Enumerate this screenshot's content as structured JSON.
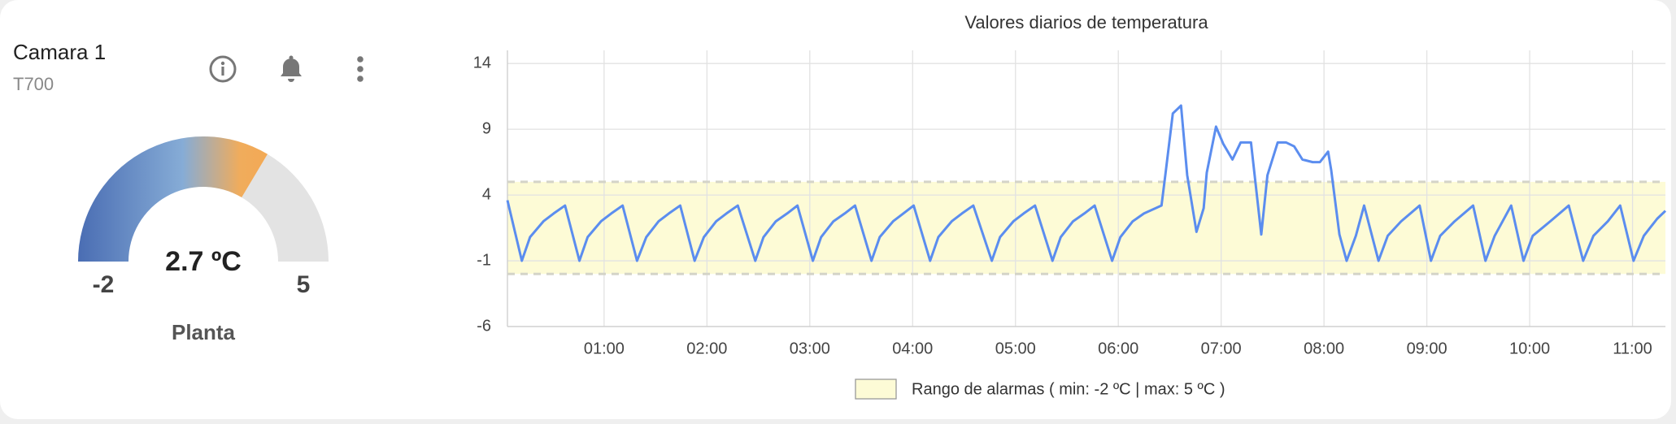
{
  "card": {
    "title": "Camara 1",
    "subtitle": "T700"
  },
  "gauge": {
    "min": -2,
    "max": 5,
    "value": 2.7,
    "value_label": "2.7 ºC",
    "label": "Planta"
  },
  "chart_data": {
    "type": "line",
    "title": "Valores diarios de temperatura",
    "x": [
      0.06,
      0.2,
      0.28,
      0.41,
      0.51,
      0.62,
      0.76,
      0.84,
      0.97,
      1.07,
      1.18,
      1.32,
      1.41,
      1.53,
      1.63,
      1.74,
      1.88,
      1.97,
      2.09,
      2.19,
      2.3,
      2.47,
      2.55,
      2.67,
      2.78,
      2.88,
      3.03,
      3.11,
      3.23,
      3.34,
      3.44,
      3.6,
      3.68,
      3.81,
      3.91,
      4.01,
      4.17,
      4.25,
      4.38,
      4.48,
      4.59,
      4.77,
      4.85,
      4.98,
      5.08,
      5.19,
      5.36,
      5.44,
      5.56,
      5.67,
      5.77,
      5.94,
      6.02,
      6.14,
      6.25,
      6.42,
      6.46,
      6.53,
      6.61,
      6.67,
      6.76,
      6.83,
      6.86,
      6.95,
      7.02,
      7.11,
      7.19,
      7.29,
      7.39,
      7.45,
      7.55,
      7.63,
      7.71,
      7.79,
      7.89,
      7.96,
      8.04,
      8.07,
      8.15,
      8.22,
      8.31,
      8.39,
      8.53,
      8.62,
      8.75,
      8.93,
      9.04,
      9.13,
      9.27,
      9.45,
      9.57,
      9.66,
      9.82,
      9.94,
      10.03,
      10.2,
      10.38,
      10.52,
      10.62,
      10.76,
      10.88,
      11.01,
      11.11,
      11.24,
      11.32
    ],
    "values": [
      3.6,
      -1.0,
      0.8,
      2.0,
      2.6,
      3.2,
      -1.0,
      0.8,
      2.0,
      2.6,
      3.2,
      -1.0,
      0.8,
      2.0,
      2.6,
      3.2,
      -1.0,
      0.8,
      2.0,
      2.6,
      3.2,
      -1.0,
      0.8,
      2.0,
      2.6,
      3.2,
      -1.0,
      0.8,
      2.0,
      2.6,
      3.2,
      -1.0,
      0.8,
      2.0,
      2.6,
      3.2,
      -1.0,
      0.8,
      2.0,
      2.6,
      3.2,
      -1.0,
      0.8,
      2.0,
      2.6,
      3.2,
      -1.0,
      0.8,
      2.0,
      2.6,
      3.2,
      -1.0,
      0.8,
      2.0,
      2.6,
      3.2,
      5.7,
      10.2,
      10.8,
      5.5,
      1.2,
      3.0,
      5.7,
      9.2,
      7.9,
      6.7,
      8.0,
      8.0,
      1.0,
      5.5,
      8.0,
      8.0,
      7.7,
      6.7,
      6.5,
      6.5,
      7.3,
      5.9,
      1.0,
      -1.0,
      0.9,
      3.2,
      -1.0,
      0.9,
      2.0,
      3.2,
      -1.0,
      0.9,
      2.0,
      3.2,
      -1.0,
      0.9,
      3.2,
      -1.0,
      0.9,
      2.0,
      3.2,
      -1.0,
      0.9,
      2.0,
      3.2,
      -1.0,
      0.9,
      2.2,
      2.8
    ],
    "color": "#5b8def",
    "xlim": [
      0.06,
      11.32
    ],
    "xticks": [
      {
        "value": 1,
        "label": "01:00"
      },
      {
        "value": 2,
        "label": "02:00"
      },
      {
        "value": 3,
        "label": "03:00"
      },
      {
        "value": 4,
        "label": "04:00"
      },
      {
        "value": 5,
        "label": "05:00"
      },
      {
        "value": 6,
        "label": "06:00"
      },
      {
        "value": 7,
        "label": "07:00"
      },
      {
        "value": 8,
        "label": "08:00"
      },
      {
        "value": 9,
        "label": "09:00"
      },
      {
        "value": 10,
        "label": "10:00"
      },
      {
        "value": 11,
        "label": "11:00"
      }
    ],
    "ylim": [
      -6,
      15
    ],
    "yticks": [
      -6,
      -1,
      4,
      9,
      14
    ],
    "grid": true,
    "alarm_band": {
      "label": "Rango de alarmas ( min: -2 ºC | max: 5 ºC )",
      "min": -2,
      "max": 5,
      "color": "#fdfbd6"
    }
  }
}
